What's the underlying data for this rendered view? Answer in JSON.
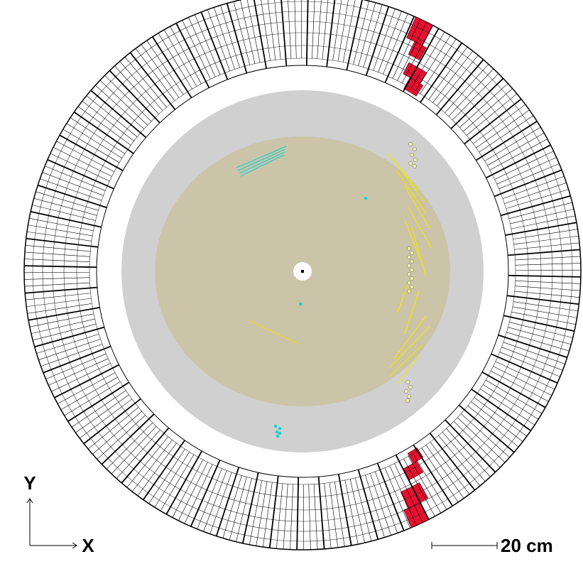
{
  "labels": {
    "y_axis": "Y",
    "x_axis": "X",
    "scale": "20 cm"
  }
}
